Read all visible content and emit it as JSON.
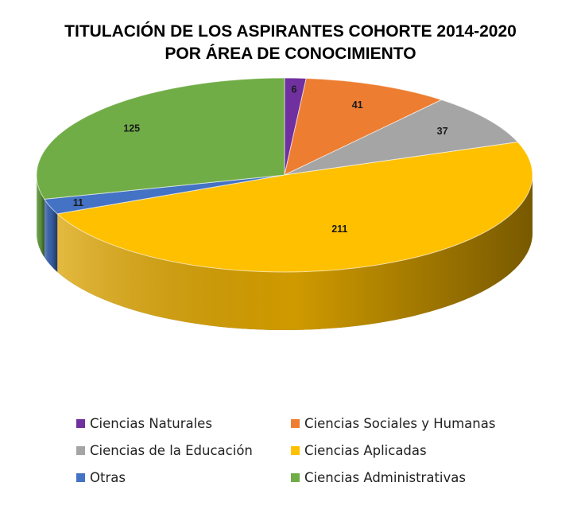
{
  "chart_data": {
    "type": "pie",
    "title_lines": [
      "TITULACIÓN DE LOS ASPIRANTES COHORTE 2014-2020",
      "POR ÁREA DE CONOCIMIENTO"
    ],
    "three_d": true,
    "legend_position": "bottom",
    "slices": [
      {
        "name": "Ciencias Naturales",
        "value": 6,
        "label": "6",
        "color": "#7030A0",
        "dark": "#3e1a5a"
      },
      {
        "name": "Ciencias Sociales y Humanas",
        "value": 41,
        "label": "41",
        "color": "#ED7D31",
        "dark": "#8a4318"
      },
      {
        "name": "Ciencias de la Educación",
        "value": 37,
        "label": "37",
        "color": "#A5A5A5",
        "dark": "#5a5a5a"
      },
      {
        "name": "Ciencias Aplicadas",
        "value": 211,
        "label": "211",
        "color": "#FFC000",
        "dark": "#6b4a00"
      },
      {
        "name": "Otras",
        "value": 11,
        "label": "11",
        "color": "#4472C4",
        "dark": "#22407a"
      },
      {
        "name": "Ciencias Administrativas",
        "value": 125,
        "label": "125",
        "color": "#70AD47",
        "dark": "#3d6626"
      }
    ]
  }
}
